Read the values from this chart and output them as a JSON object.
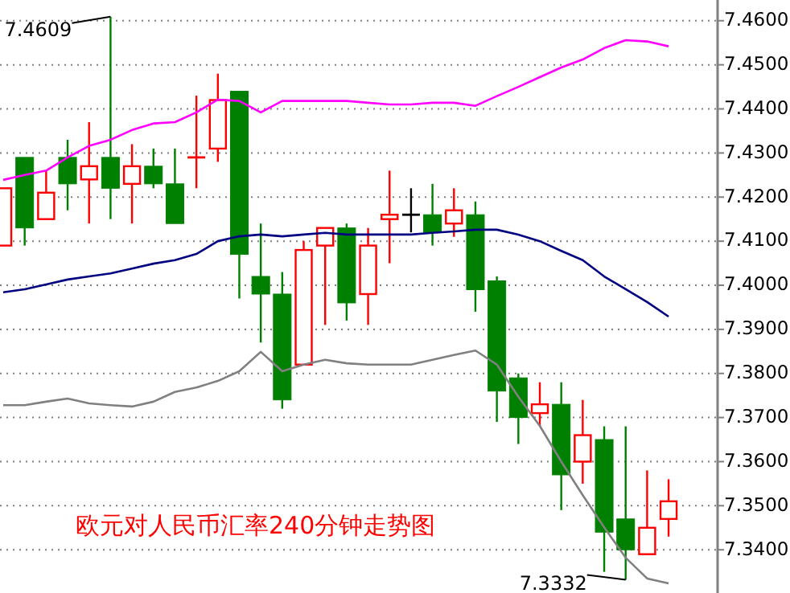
{
  "chart_data": {
    "type": "candlestick",
    "title": "欧元对人民币汇率240分钟走势图",
    "categories": [
      null,
      null,
      null,
      null,
      null,
      null,
      null,
      null,
      null,
      null,
      null,
      null,
      null,
      null,
      null,
      null,
      null,
      null,
      null,
      null,
      null,
      null,
      null,
      null,
      null,
      null,
      null,
      null,
      null,
      null,
      null,
      null
    ],
    "ohlc": [
      [
        7.409,
        7.422,
        7.409,
        7.422
      ],
      [
        7.429,
        7.429,
        7.409,
        7.413
      ],
      [
        7.415,
        7.426,
        7.415,
        7.421
      ],
      [
        7.429,
        7.433,
        7.417,
        7.423
      ],
      [
        7.424,
        7.437,
        7.414,
        7.427
      ],
      [
        7.429,
        7.4609,
        7.415,
        7.422
      ],
      [
        7.423,
        7.432,
        7.414,
        7.427
      ],
      [
        7.427,
        7.431,
        7.422,
        7.423
      ],
      [
        7.423,
        7.431,
        7.414,
        7.414
      ],
      [
        7.429,
        7.443,
        7.422,
        7.429
      ],
      [
        7.431,
        7.448,
        7.428,
        7.442
      ],
      [
        7.444,
        7.444,
        7.397,
        7.407
      ],
      [
        7.402,
        7.414,
        7.387,
        7.398
      ],
      [
        7.398,
        7.403,
        7.372,
        7.374
      ],
      [
        7.382,
        7.41,
        7.382,
        7.408
      ],
      [
        7.409,
        7.413,
        7.391,
        7.413
      ],
      [
        7.413,
        7.414,
        7.392,
        7.396
      ],
      [
        7.398,
        7.413,
        7.391,
        7.409
      ],
      [
        7.415,
        7.426,
        7.405,
        7.416
      ],
      [
        7.416,
        7.422,
        7.412,
        7.416
      ],
      [
        7.416,
        7.423,
        7.409,
        7.412
      ],
      [
        7.414,
        7.422,
        7.411,
        7.417
      ],
      [
        7.416,
        7.419,
        7.394,
        7.399
      ],
      [
        7.401,
        7.402,
        7.369,
        7.376
      ],
      [
        7.379,
        7.38,
        7.364,
        7.37
      ],
      [
        7.371,
        7.378,
        7.368,
        7.373
      ],
      [
        7.373,
        7.378,
        7.349,
        7.357
      ],
      [
        7.36,
        7.374,
        7.355,
        7.366
      ],
      [
        7.365,
        7.368,
        7.335,
        7.344
      ],
      [
        7.347,
        7.368,
        7.3332,
        7.34
      ],
      [
        7.339,
        7.358,
        7.339,
        7.345
      ],
      [
        7.347,
        7.356,
        7.343,
        7.351
      ]
    ],
    "colors": [
      "#ff0000",
      "#008000",
      "#ff0000",
      "#008000",
      "#ff0000",
      "#008000",
      "#ff0000",
      "#008000",
      "#008000",
      "#ff0000",
      "#ff0000",
      "#008000",
      "#008000",
      "#008000",
      "#ff0000",
      "#ff0000",
      "#008000",
      "#ff0000",
      "#ff0000",
      "#000000",
      "#008000",
      "#ff0000",
      "#008000",
      "#008000",
      "#008000",
      "#ff0000",
      "#008000",
      "#ff0000",
      "#008000",
      "#008000",
      "#ff0000",
      "#ff0000"
    ],
    "series": [
      {
        "type": "line",
        "color": "#ff00ff",
        "values": [
          7.4239,
          7.425,
          7.426,
          7.429,
          7.4316,
          7.433,
          7.4352,
          7.4367,
          7.437,
          7.4392,
          7.4421,
          7.4418,
          7.4392,
          7.4418,
          7.4418,
          7.4418,
          7.4418,
          7.4414,
          7.441,
          7.441,
          7.4414,
          7.4414,
          7.4407,
          7.4429,
          7.445,
          7.4472,
          7.4494,
          7.4512,
          7.4538,
          7.4556,
          7.4553,
          7.4542
        ]
      },
      {
        "type": "line",
        "color": "#000080",
        "values": [
          7.3984,
          7.3991,
          7.4002,
          7.4013,
          7.402,
          7.4027,
          7.4038,
          7.4049,
          7.4057,
          7.4071,
          7.41,
          7.4111,
          7.4115,
          7.4111,
          7.4115,
          7.4119,
          7.4115,
          7.4115,
          7.4115,
          7.4115,
          7.4119,
          7.4122,
          7.4126,
          7.4126,
          7.4115,
          7.41,
          7.4078,
          7.4057,
          7.402,
          7.3991,
          7.3962,
          7.3929
        ]
      },
      {
        "type": "line",
        "color": "#808080",
        "values": [
          7.3728,
          7.3728,
          7.3736,
          7.3743,
          7.3732,
          7.3728,
          7.3725,
          7.3736,
          7.3758,
          7.3768,
          7.3783,
          7.3805,
          7.3849,
          7.3805,
          7.382,
          7.3831,
          7.3823,
          7.382,
          7.382,
          7.382,
          7.3831,
          7.3842,
          7.3852,
          7.382,
          7.3747,
          7.3681,
          7.36,
          7.3524,
          7.3451,
          7.3382,
          7.3335,
          7.3324
        ]
      }
    ],
    "ylim": [
      7.3302,
      7.4647
    ],
    "yticks": [
      {
        "value": 7.34,
        "label": "7.3400"
      },
      {
        "value": 7.35,
        "label": "7.3500"
      },
      {
        "value": 7.36,
        "label": "7.3600"
      },
      {
        "value": 7.37,
        "label": "7.3700"
      },
      {
        "value": 7.38,
        "label": "7.3800"
      },
      {
        "value": 7.39,
        "label": "7.3900"
      },
      {
        "value": 7.4,
        "label": "7.4000"
      },
      {
        "value": 7.41,
        "label": "7.4100"
      },
      {
        "value": 7.42,
        "label": "7.4200"
      },
      {
        "value": 7.43,
        "label": "7.4300"
      },
      {
        "value": 7.44,
        "label": "7.4400"
      },
      {
        "value": 7.45,
        "label": "7.4500"
      },
      {
        "value": 7.46,
        "label": "7.4600"
      }
    ],
    "grid": "y",
    "annotations": [
      "7.4609",
      "7.3332"
    ]
  }
}
